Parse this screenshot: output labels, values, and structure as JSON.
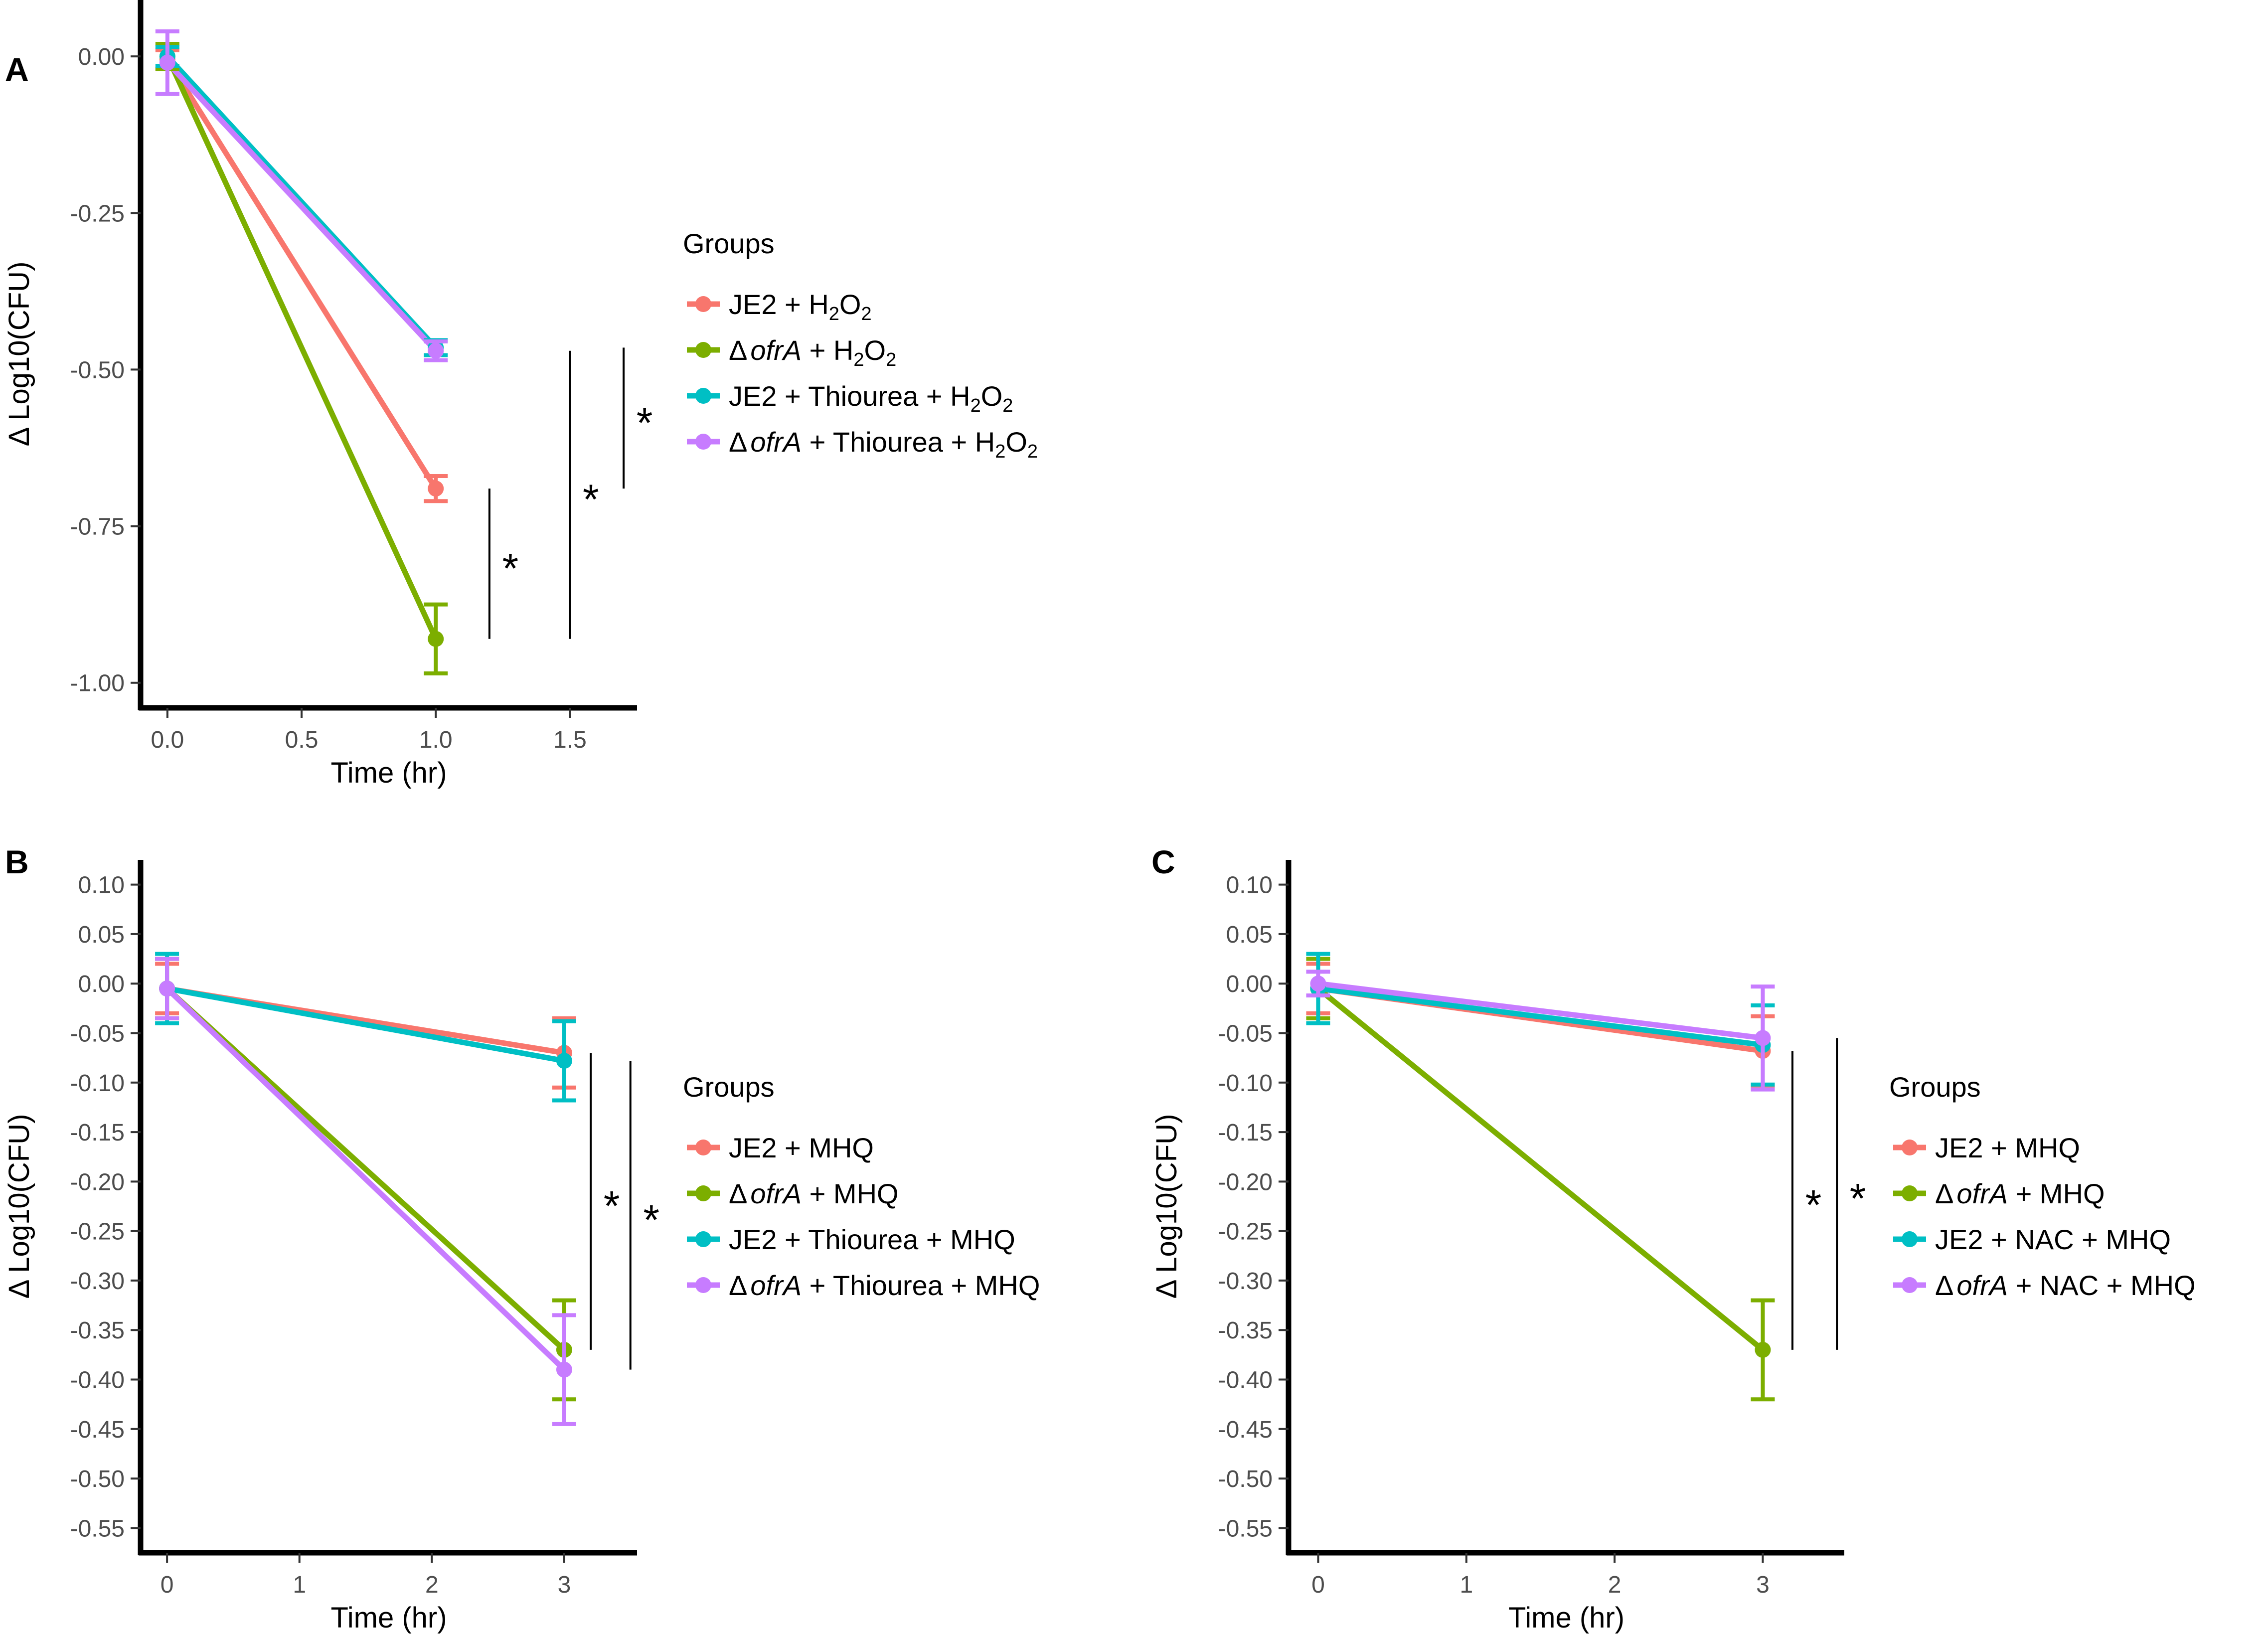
{
  "figure": {
    "y_axis_label": "Δ Log10(CFU)",
    "x_axis_label": "Time (hr)",
    "legend_title": "Groups",
    "significance_marker": "*"
  },
  "colors": {
    "JE2": "#F8766D",
    "ofrA": "#7CAE00",
    "JE2_treated": "#00BFC4",
    "ofrA_treated": "#C77CFF"
  },
  "chart_data": [
    {
      "panel_label": "A",
      "type": "line",
      "xlabel": "Time (hr)",
      "ylabel": "Δ Log10(CFU)",
      "xlim": [
        -0.1,
        1.75
      ],
      "ylim": [
        -1.04,
        0.09
      ],
      "xticks": [
        0.0,
        0.5,
        1.0,
        1.5
      ],
      "xtick_labels": [
        "0.0",
        "0.5",
        "1.0",
        "1.5"
      ],
      "yticks": [
        0.0,
        -0.25,
        -0.5,
        -0.75,
        -1.0
      ],
      "ytick_labels": [
        "0.00",
        "-0.25",
        "-0.50",
        "-0.75",
        "-1.00"
      ],
      "series": [
        {
          "name": "JE2 + H2O2",
          "legend": {
            "prefix": "JE2 + H",
            "sub1": "2",
            "mid": "O",
            "sub2": "2"
          },
          "color": "#F8766D",
          "x": [
            0.0,
            1.0
          ],
          "y": [
            -0.005,
            -0.69
          ],
          "err": [
            0.015,
            0.02
          ]
        },
        {
          "name": "ΔofrA + H2O2",
          "legend": {
            "delta": "Δ",
            "gene": "ofrA",
            "prefix": " + H",
            "sub1": "2",
            "mid": "O",
            "sub2": "2"
          },
          "color": "#7CAE00",
          "x": [
            0.0,
            1.0
          ],
          "y": [
            0.0,
            -0.93
          ],
          "err": [
            0.02,
            0.055
          ]
        },
        {
          "name": "JE2 + Thiourea + H2O2",
          "legend": {
            "prefix": "JE2 + Thiourea + H",
            "sub1": "2",
            "mid": "O",
            "sub2": "2"
          },
          "color": "#00BFC4",
          "x": [
            0.0,
            1.0
          ],
          "y": [
            0.0,
            -0.465
          ],
          "err": [
            0.015,
            0.012
          ]
        },
        {
          "name": "ΔofrA + Thiourea + H2O2",
          "legend": {
            "delta": "Δ",
            "gene": "ofrA",
            "prefix": " + Thiourea + H",
            "sub1": "2",
            "mid": "O",
            "sub2": "2"
          },
          "color": "#C77CFF",
          "x": [
            0.0,
            1.0
          ],
          "y": [
            -0.01,
            -0.47
          ],
          "err": [
            0.05,
            0.015
          ]
        }
      ],
      "significance": [
        {
          "x": 1.2,
          "y_range": [
            -0.93,
            -0.69
          ],
          "label": "*"
        },
        {
          "x": 1.5,
          "y_range": [
            -0.93,
            -0.47
          ],
          "label": "*"
        },
        {
          "x": 1.7,
          "y_range": [
            -0.69,
            -0.465
          ],
          "label": "*"
        }
      ]
    },
    {
      "panel_label": "B",
      "type": "line",
      "xlabel": "Time (hr)",
      "ylabel": "Δ Log10(CFU)",
      "xlim": [
        -0.2,
        3.55
      ],
      "ylim": [
        -0.575,
        0.125
      ],
      "xticks": [
        0,
        1,
        2,
        3
      ],
      "xtick_labels": [
        "0",
        "1",
        "2",
        "3"
      ],
      "yticks": [
        0.1,
        0.05,
        0.0,
        -0.05,
        -0.1,
        -0.15,
        -0.2,
        -0.25,
        -0.3,
        -0.35,
        -0.4,
        -0.45,
        -0.5,
        -0.55
      ],
      "ytick_labels": [
        "0.10",
        "0.05",
        "0.00",
        "-0.05",
        "-0.10",
        "-0.15",
        "-0.20",
        "-0.25",
        "-0.30",
        "-0.35",
        "-0.40",
        "-0.45",
        "-0.50",
        "-0.55"
      ],
      "series": [
        {
          "name": "JE2 + MHQ",
          "legend": {
            "prefix": "JE2 + MHQ"
          },
          "color": "#F8766D",
          "x": [
            0,
            3
          ],
          "y": [
            -0.005,
            -0.07
          ],
          "err": [
            0.025,
            0.035
          ]
        },
        {
          "name": "ΔofrA + MHQ",
          "legend": {
            "delta": "Δ",
            "gene": "ofrA",
            "prefix": " + MHQ"
          },
          "color": "#7CAE00",
          "x": [
            0,
            3
          ],
          "y": [
            -0.005,
            -0.37
          ],
          "err": [
            0.03,
            0.05
          ]
        },
        {
          "name": "JE2 + Thiourea + MHQ",
          "legend": {
            "prefix": "JE2 + Thiourea + MHQ"
          },
          "color": "#00BFC4",
          "x": [
            0,
            3
          ],
          "y": [
            -0.005,
            -0.078
          ],
          "err": [
            0.035,
            0.04
          ]
        },
        {
          "name": "ΔofrA + Thiourea + MHQ",
          "legend": {
            "delta": "Δ",
            "gene": "ofrA",
            "prefix": " + Thiourea + MHQ"
          },
          "color": "#C77CFF",
          "x": [
            0,
            3
          ],
          "y": [
            -0.005,
            -0.39
          ],
          "err": [
            0.03,
            0.055
          ]
        }
      ],
      "significance": [
        {
          "x": 3.2,
          "y_range": [
            -0.37,
            -0.07
          ],
          "label": "*"
        },
        {
          "x": 3.5,
          "y_range": [
            -0.39,
            -0.078
          ],
          "label": "*"
        }
      ]
    },
    {
      "panel_label": "C",
      "type": "line",
      "xlabel": "Time (hr)",
      "ylabel": "Δ Log10(CFU)",
      "xlim": [
        -0.2,
        3.55
      ],
      "ylim": [
        -0.575,
        0.125
      ],
      "xticks": [
        0,
        1,
        2,
        3
      ],
      "xtick_labels": [
        "0",
        "1",
        "2",
        "3"
      ],
      "yticks": [
        0.1,
        0.05,
        0.0,
        -0.05,
        -0.1,
        -0.15,
        -0.2,
        -0.25,
        -0.3,
        -0.35,
        -0.4,
        -0.45,
        -0.5,
        -0.55
      ],
      "ytick_labels": [
        "0.10",
        "0.05",
        "0.00",
        "-0.05",
        "-0.10",
        "-0.15",
        "-0.20",
        "-0.25",
        "-0.30",
        "-0.35",
        "-0.40",
        "-0.45",
        "-0.50",
        "-0.55"
      ],
      "series": [
        {
          "name": "JE2 + MHQ",
          "legend": {
            "prefix": "JE2 + MHQ"
          },
          "color": "#F8766D",
          "x": [
            0,
            3
          ],
          "y": [
            -0.005,
            -0.068
          ],
          "err": [
            0.025,
            0.035
          ]
        },
        {
          "name": "ΔofrA + MHQ",
          "legend": {
            "delta": "Δ",
            "gene": "ofrA",
            "prefix": " + MHQ"
          },
          "color": "#7CAE00",
          "x": [
            0,
            3
          ],
          "y": [
            -0.005,
            -0.37
          ],
          "err": [
            0.03,
            0.05
          ]
        },
        {
          "name": "JE2 + NAC + MHQ",
          "legend": {
            "prefix": "JE2 + NAC + MHQ"
          },
          "color": "#00BFC4",
          "x": [
            0,
            3
          ],
          "y": [
            -0.005,
            -0.062
          ],
          "err": [
            0.035,
            0.04
          ]
        },
        {
          "name": "ΔofrA + NAC + MHQ",
          "legend": {
            "delta": "Δ",
            "gene": "ofrA",
            "prefix": " + NAC + MHQ"
          },
          "color": "#C77CFF",
          "x": [
            0,
            3
          ],
          "y": [
            0.0,
            -0.055
          ],
          "err": [
            0.012,
            0.052
          ]
        }
      ],
      "significance": [
        {
          "x": 3.2,
          "y_range": [
            -0.37,
            -0.068
          ],
          "label": "*"
        },
        {
          "x": 3.5,
          "y_range": [
            -0.37,
            -0.055
          ],
          "label": "*"
        }
      ]
    }
  ]
}
